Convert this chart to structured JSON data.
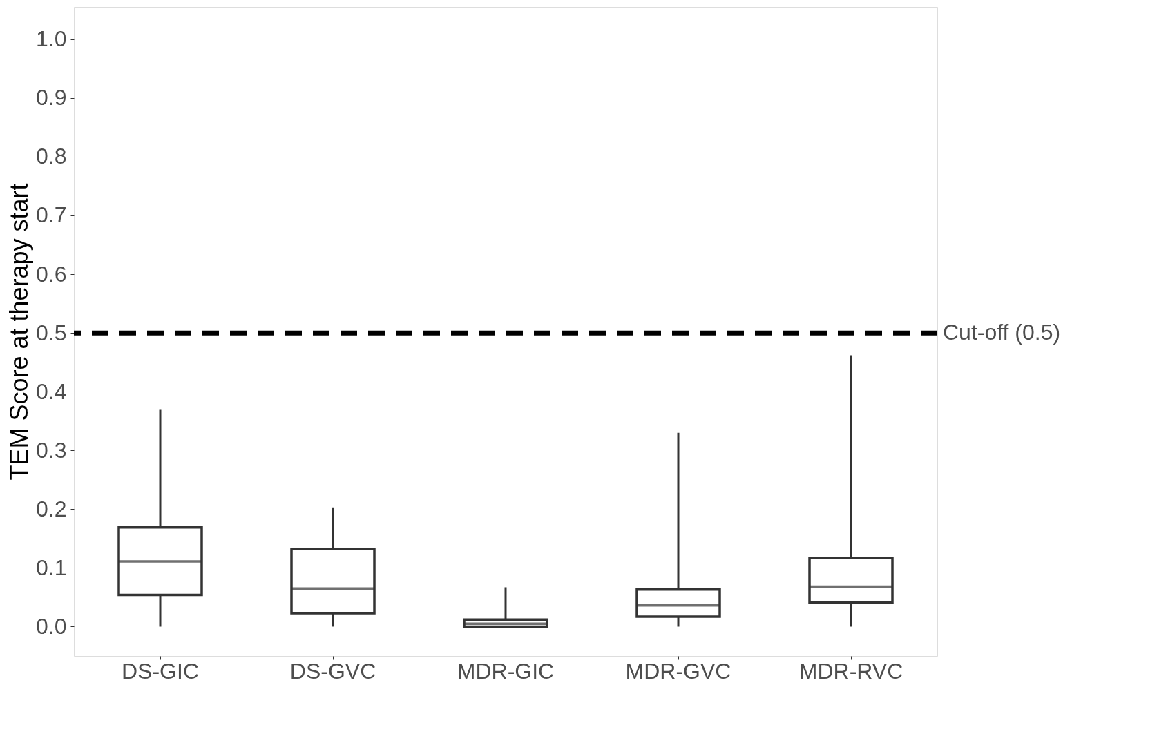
{
  "chart_data": {
    "type": "box",
    "ylabel": "TEM Score at therapy start",
    "categories": [
      "DS-GIC",
      "DS-GVC",
      "MDR-GIC",
      "MDR-GVC",
      "MDR-RVC"
    ],
    "boxes": [
      {
        "low": 0.0,
        "q1": 0.054,
        "median": 0.111,
        "q3": 0.169,
        "high": 0.369
      },
      {
        "low": 0.0,
        "q1": 0.023,
        "median": 0.065,
        "q3": 0.132,
        "high": 0.203
      },
      {
        "low": 0.0,
        "q1": 0.0,
        "median": 0.005,
        "q3": 0.012,
        "high": 0.067
      },
      {
        "low": 0.0,
        "q1": 0.017,
        "median": 0.036,
        "q3": 0.063,
        "high": 0.33
      },
      {
        "low": 0.0,
        "q1": 0.041,
        "median": 0.068,
        "q3": 0.117,
        "high": 0.462
      }
    ],
    "color": "#333333",
    "ylim": [
      -0.05,
      1.055
    ],
    "yticks": [
      {
        "value": 0,
        "label": "0.0"
      },
      {
        "value": 0.1,
        "label": "0.1"
      },
      {
        "value": 0.2,
        "label": "0.2"
      },
      {
        "value": 0.3,
        "label": "0.3"
      },
      {
        "value": 0.4,
        "label": "0.4"
      },
      {
        "value": 0.5,
        "label": "0.5"
      },
      {
        "value": 0.6,
        "label": "0.6"
      },
      {
        "value": 0.7,
        "label": "0.7"
      },
      {
        "value": 0.8,
        "label": "0.8"
      },
      {
        "value": 0.9,
        "label": "0.9"
      },
      {
        "value": 1,
        "label": "1.0"
      }
    ],
    "ref_lines": [
      {
        "axis": "y",
        "value": 0.5,
        "label": "Cut-off (0.5)",
        "color": "#000000",
        "line_style": "dashed"
      }
    ],
    "grid": false
  }
}
